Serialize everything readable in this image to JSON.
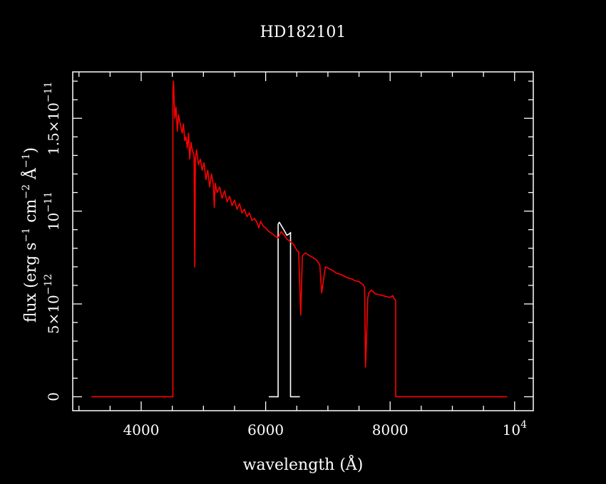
{
  "chart_data": {
    "type": "line",
    "title": "HD182101",
    "xlabel": "wavelength (Å)",
    "ylabel": "flux (erg s-1 cm-2 Å-1)",
    "xlim": [
      2900,
      10300
    ],
    "ylim": [
      -7.5e-13,
      1.75e-11
    ],
    "x_ticks": [
      {
        "value": 4000,
        "label": "4000"
      },
      {
        "value": 6000,
        "label": "6000"
      },
      {
        "value": 8000,
        "label": "8000"
      },
      {
        "value": 10000,
        "label": "10",
        "sup": "4"
      }
    ],
    "y_ticks": [
      {
        "value": 0,
        "label": "0",
        "sup": ""
      },
      {
        "value": 5e-12,
        "label": "5×10",
        "sup": "−12"
      },
      {
        "value": 1e-11,
        "label": "10",
        "sup": "−11"
      },
      {
        "value": 1.5e-11,
        "label": "1.5×10",
        "sup": "−11"
      }
    ],
    "grid": false,
    "colors": {
      "background": "#000000",
      "axes": "#ffffff",
      "series_white": "#ffffff",
      "series_red": "#ff0000"
    },
    "series": [
      {
        "color": "#ffffff",
        "x": [
          6050,
          6200,
          6200,
          6220,
          6300,
          6340,
          6390,
          6400,
          6400,
          6460,
          6460,
          6550
        ],
        "y": [
          0,
          0,
          9.3e-12,
          9.4e-12,
          8.95e-12,
          8.7e-12,
          8.8e-12,
          8.85e-12,
          0,
          0,
          0,
          0
        ]
      },
      {
        "color": "#ff0000",
        "x": [
          3200,
          4510,
          4510,
          4520,
          4540,
          4560,
          4580,
          4600,
          4620,
          4640,
          4660,
          4680,
          4700,
          4720,
          4740,
          4760,
          4780,
          4800,
          4820,
          4850,
          4861,
          4870,
          4890,
          4920,
          4950,
          4980,
          5010,
          5040,
          5070,
          5100,
          5130,
          5160,
          5175,
          5190,
          5220,
          5260,
          5300,
          5340,
          5380,
          5420,
          5460,
          5500,
          5540,
          5580,
          5620,
          5660,
          5700,
          5740,
          5780,
          5820,
          5860,
          5890,
          5920,
          5960,
          6000,
          6050,
          6100,
          6150,
          6200,
          6250,
          6300,
          6340,
          6400,
          6450,
          6500,
          6530,
          6563,
          6590,
          6640,
          6700,
          6760,
          6820,
          6870,
          6900,
          6960,
          7020,
          7080,
          7140,
          7200,
          7260,
          7320,
          7380,
          7440,
          7500,
          7560,
          7590,
          7605,
          7620,
          7640,
          7660,
          7700,
          7760,
          7820,
          7880,
          7940,
          8000,
          8040,
          8070,
          8090,
          8090,
          9880
        ],
        "y": [
          0,
          0,
          1.65e-11,
          1.7e-11,
          1.5e-11,
          1.56e-11,
          1.43e-11,
          1.52e-11,
          1.48e-11,
          1.45e-11,
          1.42e-11,
          1.47e-11,
          1.38e-11,
          1.4e-11,
          1.34e-11,
          1.42e-11,
          1.28e-11,
          1.37e-11,
          1.33e-11,
          1.3e-11,
          7e-12,
          1.28e-11,
          1.33e-11,
          1.25e-11,
          1.28e-11,
          1.22e-11,
          1.26e-11,
          1.17e-11,
          1.22e-11,
          1.13e-11,
          1.2e-11,
          1.14e-11,
          1.02e-11,
          1.15e-11,
          1.1e-11,
          1.13e-11,
          1.07e-11,
          1.11e-11,
          1.05e-11,
          1.08e-11,
          1.03e-11,
          1.06e-11,
          1.01e-11,
          1.04e-11,
          9.9e-12,
          1.01e-11,
          9.7e-12,
          9.9e-12,
          9.5e-12,
          9.6e-12,
          9.4e-12,
          9.1e-12,
          9.45e-12,
          9.2e-12,
          9.1e-12,
          8.9e-12,
          8.8e-12,
          8.65e-12,
          8.55e-12,
          8.9e-12,
          8.7e-12,
          8.5e-12,
          8.35e-12,
          8.2e-12,
          7.9e-12,
          7.8e-12,
          4.4e-12,
          7.6e-12,
          7.75e-12,
          7.6e-12,
          7.5e-12,
          7.35e-12,
          7.1e-12,
          5.6e-12,
          7e-12,
          6.9e-12,
          6.8e-12,
          6.65e-12,
          6.6e-12,
          6.5e-12,
          6.4e-12,
          6.35e-12,
          6.25e-12,
          6.2e-12,
          6.05e-12,
          5.9e-12,
          1.6e-12,
          3e-12,
          5.3e-12,
          5.6e-12,
          5.75e-12,
          5.55e-12,
          5.5e-12,
          5.45e-12,
          5.4e-12,
          5.35e-12,
          5.45e-12,
          5.25e-12,
          5.2e-12,
          0,
          0
        ]
      }
    ]
  }
}
